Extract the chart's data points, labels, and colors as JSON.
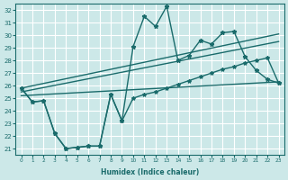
{
  "xlabel": "Humidex (Indice chaleur)",
  "ylabel": "",
  "xlim": [
    -0.5,
    23.5
  ],
  "ylim": [
    20.5,
    32.5
  ],
  "yticks": [
    21,
    22,
    23,
    24,
    25,
    26,
    27,
    28,
    29,
    30,
    31,
    32
  ],
  "xticks": [
    0,
    1,
    2,
    3,
    4,
    5,
    6,
    7,
    8,
    9,
    10,
    11,
    12,
    13,
    14,
    15,
    16,
    17,
    18,
    19,
    20,
    21,
    22,
    23
  ],
  "bg_color": "#cce8e8",
  "line_color": "#1a6b6b",
  "grid_color": "#ffffff",
  "lines": [
    {
      "x": [
        0,
        1,
        2,
        3,
        4,
        5,
        6,
        7,
        8,
        9,
        10,
        11,
        12,
        13,
        14,
        15,
        16,
        17,
        18,
        19,
        20,
        21,
        22,
        23
      ],
      "y": [
        25.8,
        24.7,
        24.8,
        22.2,
        21.0,
        21.1,
        21.2,
        21.2,
        25.3,
        23.2,
        29.1,
        31.5,
        30.7,
        32.3,
        28.0,
        28.4,
        29.6,
        29.3,
        30.2,
        30.3,
        28.3,
        27.2,
        26.5,
        26.2
      ],
      "marker": "*",
      "markersize": 3.5,
      "linewidth": 1.0
    },
    {
      "x": [
        0,
        23
      ],
      "y": [
        25.8,
        30.1
      ],
      "marker": null,
      "markersize": 0,
      "linewidth": 1.0
    },
    {
      "x": [
        0,
        23
      ],
      "y": [
        25.5,
        29.5
      ],
      "marker": null,
      "markersize": 0,
      "linewidth": 1.0
    },
    {
      "x": [
        0,
        23
      ],
      "y": [
        25.2,
        26.3
      ],
      "marker": null,
      "markersize": 0,
      "linewidth": 1.0
    },
    {
      "x": [
        0,
        1,
        2,
        3,
        4,
        5,
        6,
        7,
        8,
        9,
        10,
        11,
        12,
        13,
        14,
        15,
        16,
        17,
        18,
        19,
        20,
        21,
        22,
        23
      ],
      "y": [
        25.8,
        24.7,
        24.8,
        22.2,
        21.0,
        21.1,
        21.2,
        21.2,
        25.3,
        23.2,
        25.0,
        25.3,
        25.5,
        25.8,
        26.1,
        26.4,
        26.7,
        27.0,
        27.3,
        27.5,
        27.8,
        28.0,
        28.2,
        26.2
      ],
      "marker": "*",
      "markersize": 3.0,
      "linewidth": 1.0
    }
  ]
}
